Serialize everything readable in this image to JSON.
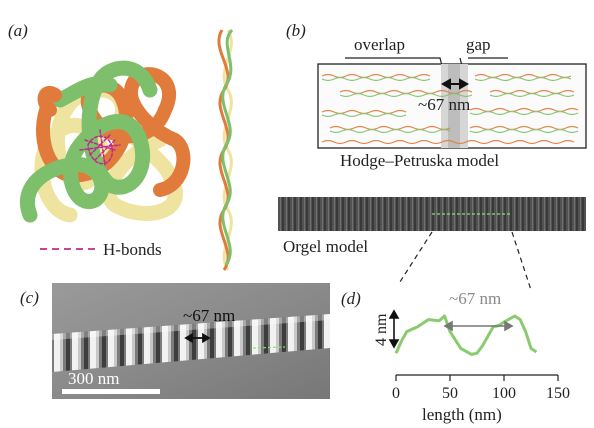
{
  "panel_labels": {
    "a": "(a)",
    "b": "(b)",
    "c": "(c)",
    "d": "(d)"
  },
  "panel_a": {
    "legend_label": "H-bonds"
  },
  "panel_b": {
    "overlap_label": "overlap",
    "gap_label": "gap",
    "period_label": "~67 nm",
    "hodge_caption": "Hodge–Petruska model",
    "orgel_caption": "Orgel model"
  },
  "panel_c": {
    "period_label": "~67 nm",
    "scale_bar_label": "300 nm"
  },
  "panel_d": {
    "period_label": "~67 nm",
    "height_label": "4 nm",
    "x_axis_label": "length (nm)",
    "x_ticks": [
      "0",
      "50",
      "100",
      "150"
    ]
  },
  "colors": {
    "strand_green": "#7dbf6a",
    "strand_orange": "#e07b3c",
    "strand_yellow": "#efe3a0",
    "hbond": "#c02a8c",
    "profile": "#8acb6f",
    "dashed_green": "#8fe07a"
  },
  "chart_data": {
    "type": "line",
    "title": "",
    "xlabel": "length (nm)",
    "ylabel": "4 nm",
    "xlim": [
      0,
      150
    ],
    "x": [
      0,
      5,
      10,
      20,
      30,
      40,
      45,
      50,
      60,
      70,
      75,
      80,
      90,
      95,
      100,
      110,
      115,
      120,
      125,
      130
    ],
    "y": [
      0.4,
      1.4,
      2.2,
      2.6,
      3.2,
      3.1,
      3.5,
      2.2,
      0.8,
      0.3,
      0.4,
      1.0,
      2.6,
      2.7,
      3.0,
      3.5,
      3.2,
      2.2,
      0.8,
      0.5
    ],
    "series": [
      {
        "values": [
          0.4,
          1.4,
          2.2,
          2.6,
          3.2,
          3.1,
          3.5,
          2.2,
          0.8,
          0.3,
          0.4,
          1.0,
          2.6,
          2.7,
          3.0,
          3.5,
          3.2,
          2.2,
          0.8,
          0.5
        ]
      }
    ],
    "annotations": [
      "~67 nm",
      "4 nm"
    ]
  }
}
